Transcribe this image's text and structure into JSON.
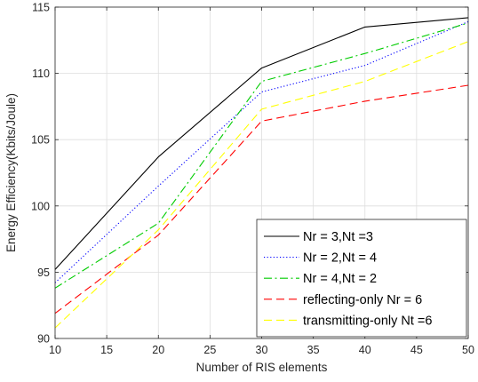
{
  "chart_data": {
    "type": "line",
    "title": "",
    "xlabel": "Number of RIS elements",
    "ylabel": "Energy Efficiency(Kbits/Joule)",
    "xlim": [
      10,
      50
    ],
    "ylim": [
      90,
      115
    ],
    "xticks": [
      10,
      15,
      20,
      25,
      30,
      35,
      40,
      45,
      50
    ],
    "yticks": [
      90,
      95,
      100,
      105,
      110,
      115
    ],
    "grid": true,
    "legend_position": "bottom-right",
    "x": [
      10,
      20,
      30,
      40,
      50
    ],
    "series": [
      {
        "name": "Nr = 3,Nt =3",
        "color": "#000000",
        "dash": "solid",
        "values": [
          95.2,
          103.7,
          110.4,
          113.5,
          114.2
        ]
      },
      {
        "name": "Nr = 2,Nt = 4",
        "color": "#0000ff",
        "dash": "dotted",
        "values": [
          94.2,
          101.5,
          108.6,
          110.6,
          113.9
        ]
      },
      {
        "name": "Nr = 4,Nt = 2",
        "color": "#00cc00",
        "dash": "dashdot",
        "values": [
          93.8,
          98.7,
          109.4,
          111.5,
          113.8
        ]
      },
      {
        "name": "reflecting-only Nr = 6",
        "color": "#ff0000",
        "dash": "dashed",
        "values": [
          91.9,
          97.8,
          106.4,
          107.9,
          109.1
        ]
      },
      {
        "name": "transmitting-only Nt =6",
        "color": "#ffff00",
        "dash": "dashed",
        "values": [
          90.8,
          98.2,
          107.3,
          109.4,
          112.4
        ]
      }
    ]
  }
}
